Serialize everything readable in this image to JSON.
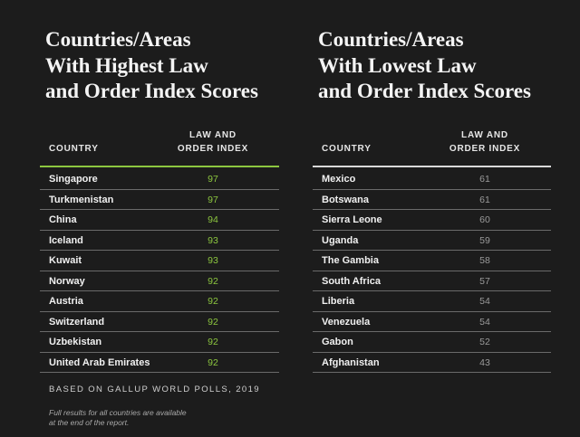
{
  "chart_data": [
    {
      "type": "table",
      "title": "Countries/Areas With Highest Law and Order Index Scores",
      "title_lines": [
        "Countries/Areas",
        "With Highest Law",
        "and Order Index Scores"
      ],
      "columns": [
        "COUNTRY",
        "LAW AND ORDER INDEX"
      ],
      "column_lines": [
        "LAW AND",
        "ORDER INDEX"
      ],
      "accent_color": "#8cc63f",
      "rows": [
        {
          "country": "Singapore",
          "score": "97"
        },
        {
          "country": "Turkmenistan",
          "score": "97"
        },
        {
          "country": "China",
          "score": "94"
        },
        {
          "country": "Iceland",
          "score": "93"
        },
        {
          "country": "Kuwait",
          "score": "93"
        },
        {
          "country": "Norway",
          "score": "92"
        },
        {
          "country": "Austria",
          "score": "92"
        },
        {
          "country": "Switzerland",
          "score": "92"
        },
        {
          "country": "Uzbekistan",
          "score": "92"
        },
        {
          "country": "United Arab Emirates",
          "score": "92"
        }
      ]
    },
    {
      "type": "table",
      "title": "Countries/Areas With Lowest Law and Order Index Scores",
      "title_lines": [
        "Countries/Areas",
        "With Lowest Law",
        "and Order Index Scores"
      ],
      "columns": [
        "COUNTRY",
        "LAW AND ORDER INDEX"
      ],
      "column_lines": [
        "LAW AND",
        "ORDER INDEX"
      ],
      "accent_color": "#d9d9d9",
      "rows": [
        {
          "country": "Mexico",
          "score": "61"
        },
        {
          "country": "Botswana",
          "score": "61"
        },
        {
          "country": "Sierra Leone",
          "score": "60"
        },
        {
          "country": "Uganda",
          "score": "59"
        },
        {
          "country": "The Gambia",
          "score": "58"
        },
        {
          "country": "South Africa",
          "score": "57"
        },
        {
          "country": "Liberia",
          "score": "54"
        },
        {
          "country": "Venezuela",
          "score": "54"
        },
        {
          "country": "Gabon",
          "score": "52"
        },
        {
          "country": "Afghanistan",
          "score": "43"
        }
      ]
    }
  ],
  "source_note": "BASED ON GALLUP WORLD POLLS, 2019",
  "footnote_lines": [
    "Full results for all countries are available",
    "at the end of the report."
  ],
  "colors": {
    "background": "#1c1c1c",
    "highlight_score": "#8cc63f",
    "low_score": "#9a9a9a"
  }
}
